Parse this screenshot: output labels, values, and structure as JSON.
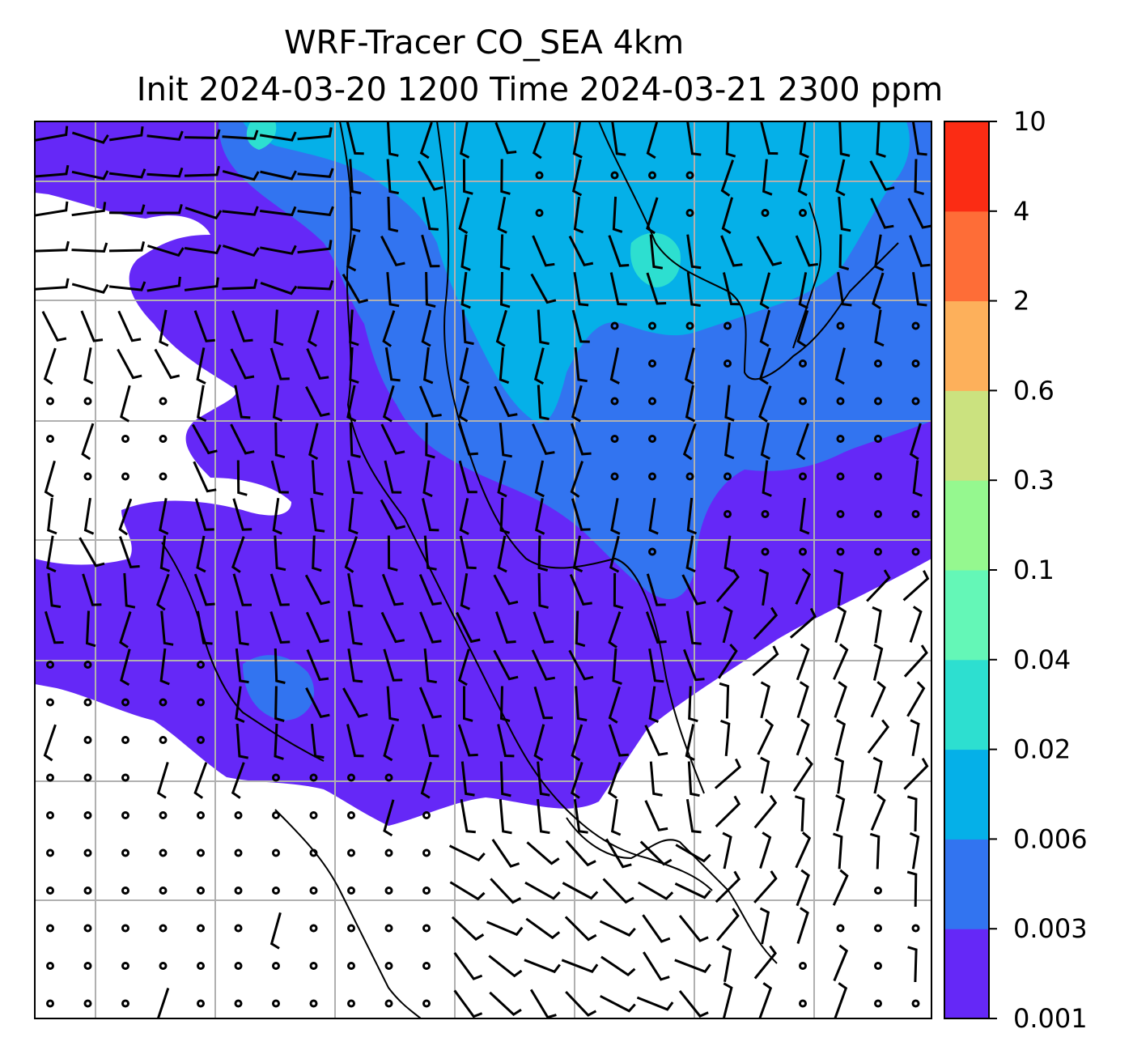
{
  "title": {
    "line1": "WRF-Tracer CO_SEA 4km",
    "line2": "Init 2024-03-20 1200 Time 2024-03-21 2300 ppm"
  },
  "colorbar": {
    "levels": [
      "0.001",
      "0.003",
      "0.006",
      "0.02",
      "0.04",
      "0.1",
      "0.3",
      "0.6",
      "2",
      "4",
      "10"
    ],
    "colors": [
      "#6528f7",
      "#3274f0",
      "#05b0e8",
      "#2ddfd0",
      "#64f7b7",
      "#95f88f",
      "#cbe27f",
      "#fdb05b",
      "#fe6d37",
      "#fb2c14"
    ]
  },
  "map": {
    "field": "CO_SEA",
    "units": "ppm",
    "gridlines": true,
    "wind_symbol": "wind-barb",
    "calm_symbol": "calm-circle",
    "coastline_color": "#000000",
    "gridline_color": "#b0b0b0"
  }
}
